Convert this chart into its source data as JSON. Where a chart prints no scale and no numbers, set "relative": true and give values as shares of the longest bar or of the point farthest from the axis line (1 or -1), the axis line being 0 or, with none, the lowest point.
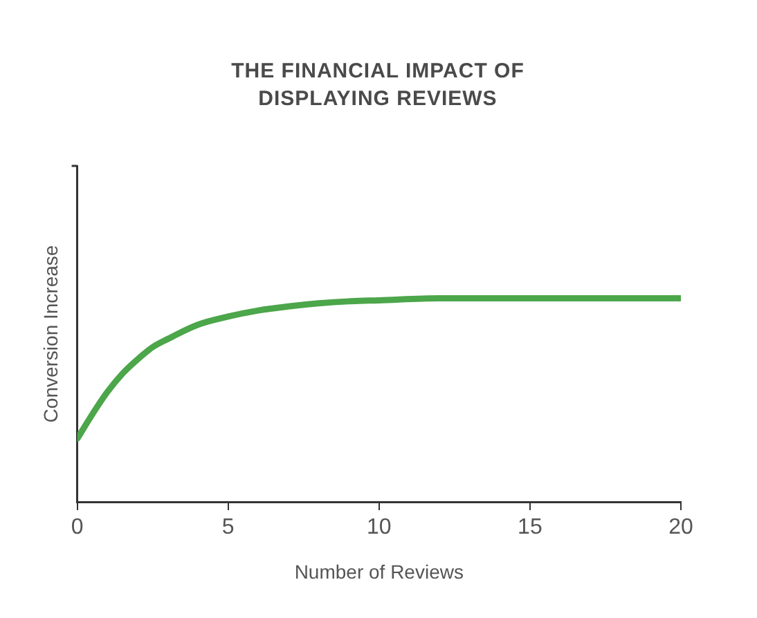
{
  "chart_data": {
    "type": "line",
    "title": "THE FINANCIAL IMPACT OF DISPLAYING REVIEWS",
    "xlabel": "Number of Reviews",
    "ylabel": "Conversion Increase",
    "relative": true,
    "x": [
      0,
      0.5,
      1,
      1.5,
      2,
      2.5,
      3,
      4,
      5,
      6,
      7,
      8,
      9,
      10,
      12,
      15,
      20
    ],
    "series": [
      {
        "color": "#4ca64a",
        "values": [
          0.31,
          0.43,
          0.54,
          0.63,
          0.7,
          0.76,
          0.8,
          0.87,
          0.91,
          0.94,
          0.96,
          0.975,
          0.985,
          0.99,
          1,
          1,
          1
        ]
      }
    ],
    "xlim": [
      0,
      20
    ],
    "xticks": [
      0,
      5,
      10,
      15,
      20
    ],
    "grid": false,
    "legend": false,
    "marker": "none",
    "line_style": "solid"
  }
}
